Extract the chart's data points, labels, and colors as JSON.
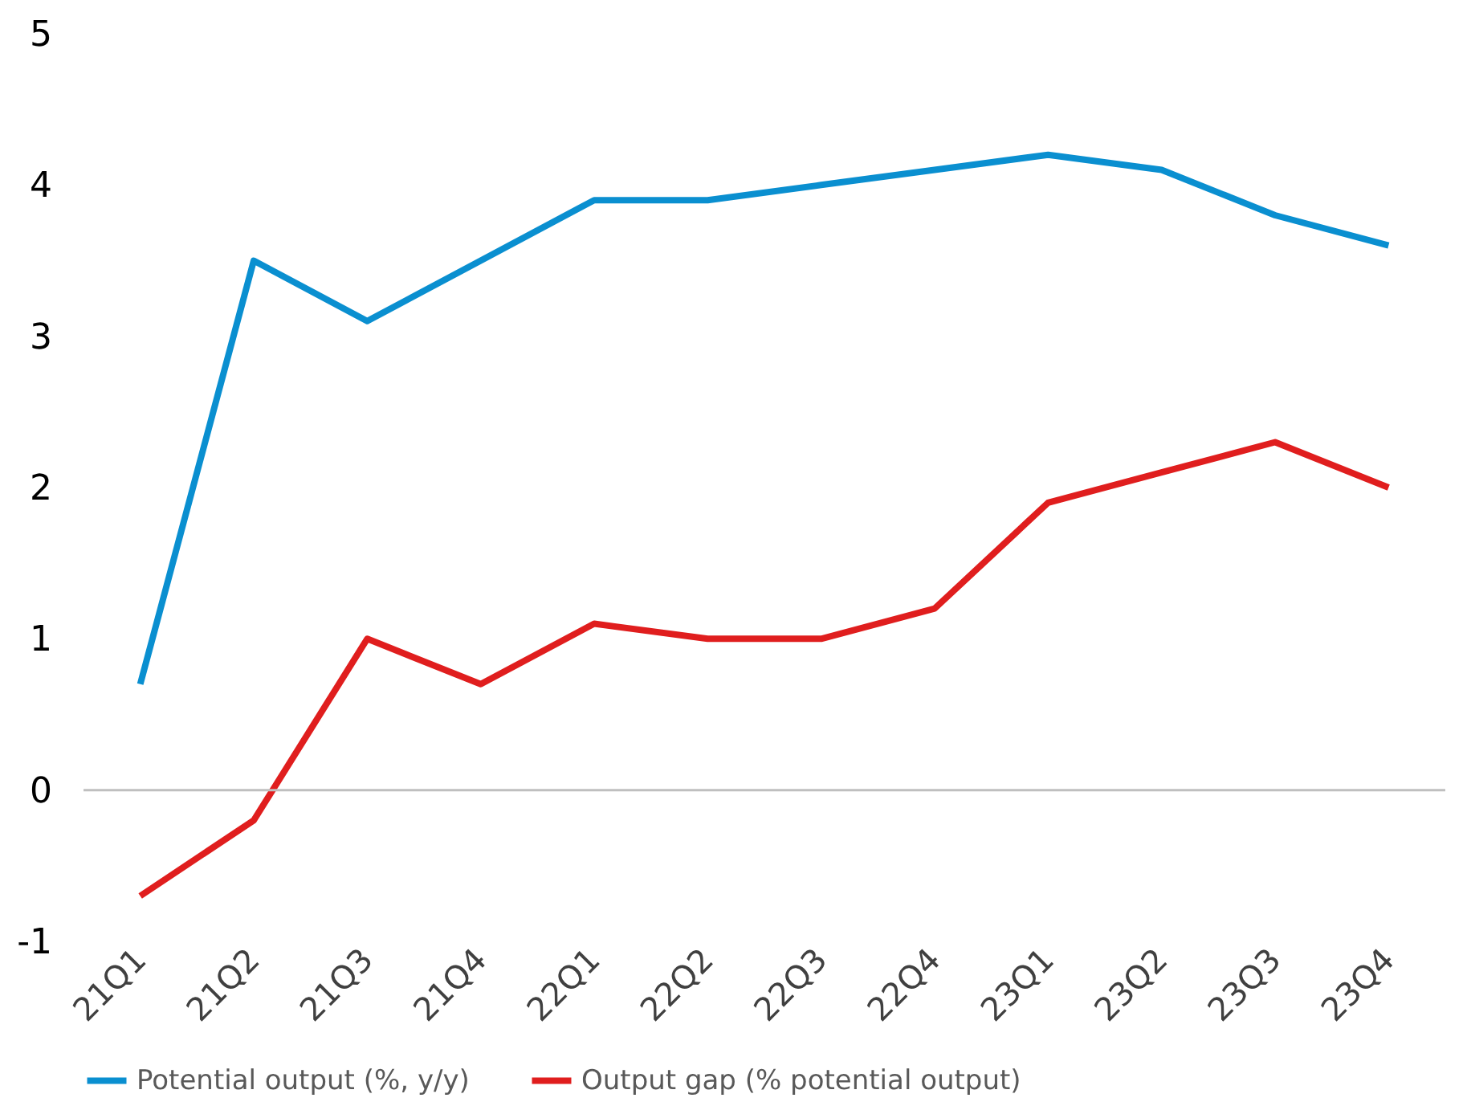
{
  "chart_data": {
    "type": "line",
    "categories": [
      "21Q1",
      "21Q2",
      "21Q3",
      "21Q4",
      "22Q1",
      "22Q2",
      "22Q3",
      "22Q4",
      "23Q1",
      "23Q2",
      "23Q3",
      "23Q4"
    ],
    "series": [
      {
        "name": "Potential output (%, y/y)",
        "color": "#0a8fd0",
        "values": [
          0.7,
          3.5,
          3.1,
          3.5,
          3.9,
          3.9,
          4.0,
          4.1,
          4.2,
          4.1,
          3.8,
          3.6
        ]
      },
      {
        "name": "Output gap (% potential output)",
        "color": "#e01e1e",
        "values": [
          -0.7,
          -0.2,
          1.0,
          0.7,
          1.1,
          1.0,
          1.0,
          1.2,
          1.9,
          2.1,
          2.3,
          2.0
        ]
      }
    ],
    "ylim": [
      -1,
      5
    ],
    "yticks": [
      -1,
      0,
      1,
      2,
      3,
      4,
      5
    ],
    "ref_lines": [
      {
        "axis": "y",
        "value": 0,
        "color": "#bfbfbf"
      }
    ],
    "grid": false,
    "legend": "bottom",
    "marker": "none",
    "line_style": "solid"
  }
}
